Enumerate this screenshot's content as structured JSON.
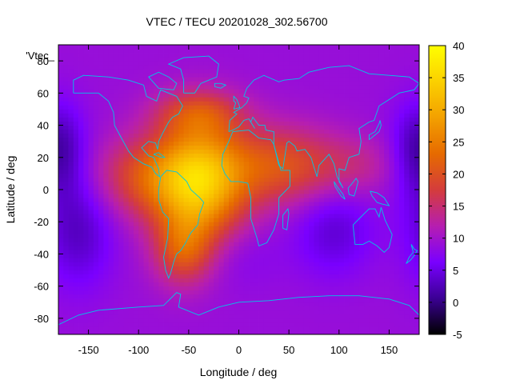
{
  "chart_data": {
    "type": "heatmap",
    "title": "VTEC / TECU 20201028_302.56700",
    "xlabel": "Longitude / deg",
    "ylabel": "Latitude / deg",
    "series_key_label": "'Vtec_",
    "xlim": [
      -180,
      180
    ],
    "ylim": [
      -90,
      90
    ],
    "x_ticks": [
      -150,
      -100,
      -50,
      0,
      50,
      100,
      150
    ],
    "y_ticks": [
      -80,
      -60,
      -40,
      -20,
      0,
      20,
      40,
      60,
      80
    ],
    "colorbar": {
      "range": [
        -5,
        40
      ],
      "ticks": [
        -5,
        0,
        5,
        10,
        15,
        20,
        25,
        30,
        35,
        40
      ],
      "palette": "gnuplot-rgbformulae-7-5-15",
      "colors": [
        "#000000",
        "#3b0094",
        "#7a00ff",
        "#b61eb0",
        "#d43c3c",
        "#e66a00",
        "#f3a000",
        "#fbd000",
        "#ffff00"
      ]
    },
    "grid": false,
    "base_tec": 9,
    "components": [
      {
        "lon": -40,
        "lat": 5,
        "sx": 32,
        "sy": 25,
        "amp": 24
      },
      {
        "lon": -95,
        "lat": 8,
        "sx": 35,
        "sy": 17,
        "amp": 9
      },
      {
        "lon": -55,
        "lat": -38,
        "sx": 20,
        "sy": 15,
        "amp": 10
      },
      {
        "lon": 40,
        "lat": 15,
        "sx": 40,
        "sy": 17,
        "amp": 11
      },
      {
        "lon": 115,
        "lat": 15,
        "sx": 32,
        "sy": 13,
        "amp": 4
      },
      {
        "lon": -40,
        "lat": 48,
        "sx": 30,
        "sy": 10,
        "amp": 8
      },
      {
        "lon": -160,
        "lat": -25,
        "sx": 25,
        "sy": 25,
        "amp": -6
      },
      {
        "lon": 95,
        "lat": -25,
        "sx": 28,
        "sy": 20,
        "amp": -5
      },
      {
        "lon": -175,
        "lat": 25,
        "sx": 18,
        "sy": 20,
        "amp": -4
      },
      {
        "lon": 175,
        "lat": 25,
        "sx": 18,
        "sy": 20,
        "amp": -4
      },
      {
        "lon": 0,
        "lat": -40,
        "sx": 30,
        "sy": 15,
        "amp": -2
      }
    ]
  },
  "coastlines": [
    {
      "name": "north-america",
      "points": [
        [
          -165,
          60
        ],
        [
          -150,
          60
        ],
        [
          -140,
          60
        ],
        [
          -130,
          55
        ],
        [
          -125,
          48
        ],
        [
          -124,
          40
        ],
        [
          -118,
          33
        ],
        [
          -110,
          24
        ],
        [
          -105,
          20
        ],
        [
          -95,
          16
        ],
        [
          -87,
          14
        ],
        [
          -83,
          10
        ],
        [
          -79,
          8
        ],
        [
          -80,
          13
        ],
        [
          -85,
          20
        ],
        [
          -90,
          21
        ],
        [
          -97,
          26
        ],
        [
          -90,
          30
        ],
        [
          -83,
          29
        ],
        [
          -81,
          25
        ],
        [
          -80,
          30
        ],
        [
          -76,
          35
        ],
        [
          -70,
          42
        ],
        [
          -66,
          45
        ],
        [
          -60,
          47
        ],
        [
          -56,
          52
        ],
        [
          -62,
          58
        ],
        [
          -78,
          62
        ],
        [
          -82,
          55
        ],
        [
          -92,
          58
        ],
        [
          -95,
          65
        ],
        [
          -110,
          68
        ],
        [
          -130,
          70
        ],
        [
          -155,
          71
        ],
        [
          -165,
          68
        ],
        [
          -165,
          60
        ]
      ]
    },
    {
      "name": "south-america",
      "points": [
        [
          -78,
          8
        ],
        [
          -72,
          12
        ],
        [
          -62,
          11
        ],
        [
          -52,
          5
        ],
        [
          -48,
          0
        ],
        [
          -39,
          -5
        ],
        [
          -35,
          -8
        ],
        [
          -39,
          -15
        ],
        [
          -41,
          -22
        ],
        [
          -48,
          -27
        ],
        [
          -53,
          -33
        ],
        [
          -58,
          -38
        ],
        [
          -62,
          -40
        ],
        [
          -65,
          -45
        ],
        [
          -68,
          -52
        ],
        [
          -70,
          -55
        ],
        [
          -73,
          -50
        ],
        [
          -75,
          -42
        ],
        [
          -71,
          -30
        ],
        [
          -70,
          -18
        ],
        [
          -76,
          -14
        ],
        [
          -80,
          -6
        ],
        [
          -80,
          0
        ],
        [
          -78,
          8
        ]
      ]
    },
    {
      "name": "africa",
      "points": [
        [
          -17,
          15
        ],
        [
          -16,
          22
        ],
        [
          -10,
          30
        ],
        [
          -6,
          36
        ],
        [
          10,
          37
        ],
        [
          20,
          32
        ],
        [
          32,
          31
        ],
        [
          35,
          28
        ],
        [
          42,
          12
        ],
        [
          51,
          12
        ],
        [
          51,
          2
        ],
        [
          40,
          -5
        ],
        [
          40,
          -15
        ],
        [
          35,
          -25
        ],
        [
          28,
          -33
        ],
        [
          20,
          -35
        ],
        [
          18,
          -30
        ],
        [
          12,
          -18
        ],
        [
          12,
          -5
        ],
        [
          9,
          4
        ],
        [
          0,
          5
        ],
        [
          -8,
          5
        ],
        [
          -14,
          10
        ],
        [
          -17,
          15
        ]
      ]
    },
    {
      "name": "eurasia",
      "points": [
        [
          -10,
          36
        ],
        [
          -9,
          43
        ],
        [
          -2,
          47
        ],
        [
          -5,
          48
        ],
        [
          3,
          51
        ],
        [
          8,
          54
        ],
        [
          10,
          57
        ],
        [
          5,
          58
        ],
        [
          8,
          63
        ],
        [
          15,
          68
        ],
        [
          25,
          71
        ],
        [
          40,
          67
        ],
        [
          45,
          68
        ],
        [
          60,
          69
        ],
        [
          70,
          73
        ],
        [
          90,
          76
        ],
        [
          110,
          77
        ],
        [
          130,
          72
        ],
        [
          150,
          71
        ],
        [
          170,
          70
        ],
        [
          180,
          66
        ],
        [
          175,
          62
        ],
        [
          160,
          60
        ],
        [
          155,
          58
        ],
        [
          140,
          52
        ],
        [
          135,
          43
        ],
        [
          130,
          42
        ],
        [
          120,
          38
        ],
        [
          122,
          30
        ],
        [
          120,
          22
        ],
        [
          110,
          20
        ],
        [
          106,
          12
        ],
        [
          100,
          13
        ],
        [
          100,
          5
        ],
        [
          104,
          1
        ],
        [
          98,
          8
        ],
        [
          95,
          16
        ],
        [
          90,
          22
        ],
        [
          80,
          15
        ],
        [
          78,
          8
        ],
        [
          72,
          20
        ],
        [
          66,
          25
        ],
        [
          58,
          24
        ],
        [
          56,
          27
        ],
        [
          50,
          30
        ],
        [
          48,
          29
        ],
        [
          44,
          13
        ],
        [
          40,
          15
        ],
        [
          35,
          28
        ],
        [
          35,
          36
        ],
        [
          27,
          37
        ],
        [
          26,
          40
        ],
        [
          20,
          40
        ],
        [
          14,
          45
        ],
        [
          12,
          42
        ],
        [
          16,
          38
        ],
        [
          10,
          44
        ],
        [
          5,
          43
        ],
        [
          0,
          39
        ],
        [
          -6,
          37
        ],
        [
          -10,
          36
        ]
      ]
    },
    {
      "name": "australia",
      "points": [
        [
          114,
          -22
        ],
        [
          116,
          -34
        ],
        [
          124,
          -34
        ],
        [
          130,
          -32
        ],
        [
          138,
          -35
        ],
        [
          145,
          -39
        ],
        [
          150,
          -36
        ],
        [
          153,
          -28
        ],
        [
          146,
          -19
        ],
        [
          142,
          -11
        ],
        [
          140,
          -17
        ],
        [
          136,
          -12
        ],
        [
          130,
          -12
        ],
        [
          125,
          -15
        ],
        [
          114,
          -22
        ]
      ]
    },
    {
      "name": "greenland",
      "points": [
        [
          -55,
          60
        ],
        [
          -44,
          60
        ],
        [
          -38,
          66
        ],
        [
          -22,
          70
        ],
        [
          -20,
          78
        ],
        [
          -30,
          83
        ],
        [
          -55,
          82
        ],
        [
          -70,
          78
        ],
        [
          -58,
          75
        ],
        [
          -55,
          68
        ],
        [
          -55,
          60
        ]
      ]
    },
    {
      "name": "antarctica",
      "points": [
        [
          -180,
          -84
        ],
        [
          -160,
          -78
        ],
        [
          -140,
          -75
        ],
        [
          -100,
          -73
        ],
        [
          -75,
          -72
        ],
        [
          -62,
          -64
        ],
        [
          -58,
          -65
        ],
        [
          -60,
          -73
        ],
        [
          -40,
          -78
        ],
        [
          -20,
          -73
        ],
        [
          0,
          -70
        ],
        [
          30,
          -69
        ],
        [
          60,
          -67
        ],
        [
          90,
          -66
        ],
        [
          120,
          -66
        ],
        [
          150,
          -68
        ],
        [
          170,
          -72
        ],
        [
          180,
          -78
        ]
      ]
    },
    {
      "name": "uk",
      "points": [
        [
          -5,
          50
        ],
        [
          1,
          51
        ],
        [
          0,
          53
        ],
        [
          -2,
          56
        ],
        [
          -5,
          58
        ],
        [
          -5,
          55
        ],
        [
          -3,
          54
        ],
        [
          -5,
          50
        ]
      ]
    },
    {
      "name": "madagascar",
      "points": [
        [
          44,
          -24
        ],
        [
          48,
          -25
        ],
        [
          50,
          -15
        ],
        [
          49,
          -12
        ],
        [
          44,
          -16
        ],
        [
          44,
          -24
        ]
      ]
    },
    {
      "name": "japan",
      "points": [
        [
          130,
          31
        ],
        [
          136,
          34
        ],
        [
          140,
          36
        ],
        [
          142,
          40
        ],
        [
          141,
          43
        ],
        [
          140,
          41
        ],
        [
          136,
          36
        ],
        [
          130,
          34
        ],
        [
          130,
          31
        ]
      ]
    },
    {
      "name": "borneo",
      "points": [
        [
          109,
          1
        ],
        [
          112,
          3
        ],
        [
          117,
          7
        ],
        [
          119,
          5
        ],
        [
          117,
          0
        ],
        [
          115,
          -4
        ],
        [
          110,
          -3
        ],
        [
          109,
          1
        ]
      ]
    },
    {
      "name": "sumatra",
      "points": [
        [
          95,
          5
        ],
        [
          98,
          2
        ],
        [
          104,
          -3
        ],
        [
          106,
          -6
        ],
        [
          102,
          -4
        ],
        [
          96,
          2
        ],
        [
          95,
          5
        ]
      ]
    },
    {
      "name": "new-guinea",
      "points": [
        [
          131,
          -1
        ],
        [
          138,
          -2
        ],
        [
          145,
          -5
        ],
        [
          150,
          -10
        ],
        [
          143,
          -9
        ],
        [
          138,
          -8
        ],
        [
          133,
          -4
        ],
        [
          131,
          -1
        ]
      ]
    },
    {
      "name": "new-zealand",
      "points": [
        [
          172,
          -34
        ],
        [
          175,
          -37
        ],
        [
          178,
          -38
        ],
        [
          175,
          -41
        ],
        [
          171,
          -44
        ],
        [
          167,
          -46
        ],
        [
          170,
          -42
        ],
        [
          174,
          -39
        ],
        [
          172,
          -34
        ]
      ]
    },
    {
      "name": "baffin",
      "points": [
        [
          -80,
          63
        ],
        [
          -65,
          62
        ],
        [
          -62,
          66
        ],
        [
          -70,
          70
        ],
        [
          -80,
          73
        ],
        [
          -90,
          70
        ],
        [
          -80,
          63
        ]
      ]
    },
    {
      "name": "iceland",
      "points": [
        [
          -24,
          64
        ],
        [
          -18,
          63
        ],
        [
          -13,
          65
        ],
        [
          -18,
          66
        ],
        [
          -24,
          66
        ],
        [
          -24,
          64
        ]
      ]
    },
    {
      "name": "cuba",
      "points": [
        [
          -85,
          22
        ],
        [
          -80,
          23
        ],
        [
          -74,
          20
        ],
        [
          -78,
          20
        ],
        [
          -85,
          22
        ]
      ]
    }
  ]
}
